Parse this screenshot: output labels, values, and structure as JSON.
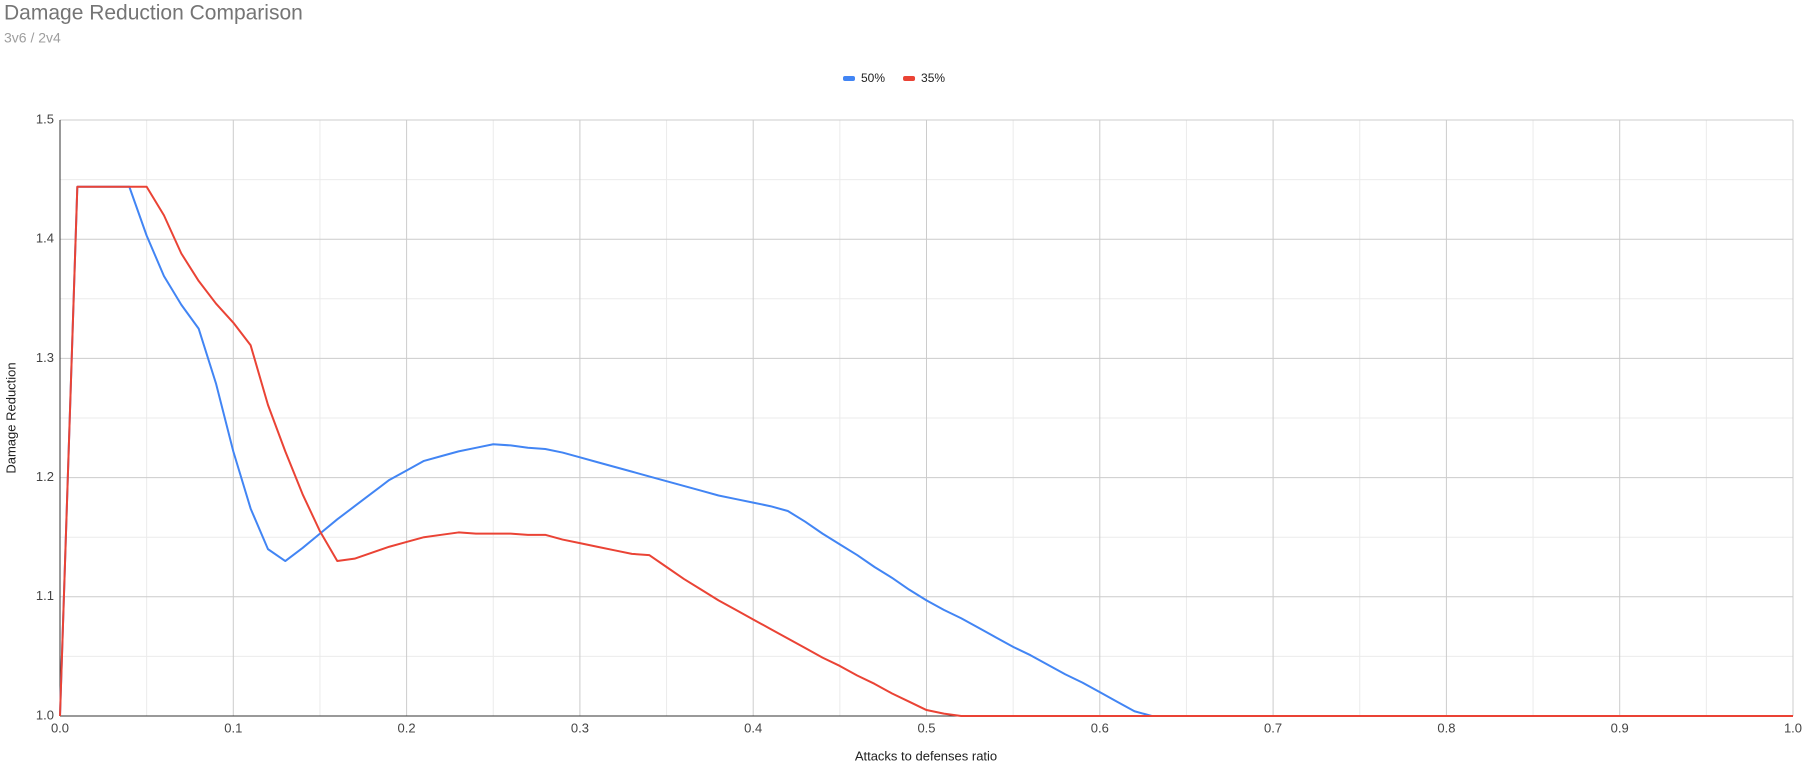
{
  "chart_data": {
    "type": "line",
    "title": "Damage Reduction Comparison",
    "subtitle": "3v6 / 2v4",
    "x_label": "Attacks to defenses ratio",
    "y_label": "Damage Reduction",
    "x": [
      0,
      0.01,
      0.02,
      0.03,
      0.04,
      0.05,
      0.06,
      0.07,
      0.08,
      0.09,
      0.1,
      0.11,
      0.12,
      0.13,
      0.14,
      0.15,
      0.16,
      0.17,
      0.18,
      0.19,
      0.2,
      0.21,
      0.22,
      0.23,
      0.24,
      0.25,
      0.26,
      0.27,
      0.28,
      0.29,
      0.3,
      0.31,
      0.32,
      0.33,
      0.34,
      0.35,
      0.36,
      0.37,
      0.38,
      0.39,
      0.4,
      0.41,
      0.42,
      0.43,
      0.44,
      0.45,
      0.46,
      0.47,
      0.48,
      0.49,
      0.5,
      0.51,
      0.52,
      0.53,
      0.54,
      0.55,
      0.56,
      0.57,
      0.58,
      0.59,
      0.6,
      0.61,
      0.62,
      0.63,
      0.64,
      0.65,
      0.66,
      0.67,
      0.68,
      0.69,
      0.7,
      0.71,
      0.72,
      0.73,
      0.74,
      0.75,
      0.76,
      0.77,
      0.78,
      0.79,
      0.8,
      0.81,
      0.82,
      0.83,
      0.84,
      0.85,
      0.86,
      0.87,
      0.88,
      0.89,
      0.9,
      0.91,
      0.92,
      0.93,
      0.94,
      0.95,
      0.96,
      0.97,
      0.98,
      0.99,
      1
    ],
    "series": [
      {
        "name": "50%",
        "color": "#4285f4",
        "values": [
          1,
          1.444,
          1.444,
          1.444,
          1.444,
          1.403,
          1.369,
          1.345,
          1.325,
          1.279,
          1.222,
          1.174,
          1.14,
          1.13,
          1.141,
          1.153,
          1.165,
          1.176,
          1.187,
          1.198,
          1.206,
          1.214,
          1.218,
          1.222,
          1.225,
          1.228,
          1.227,
          1.225,
          1.224,
          1.221,
          1.217,
          1.213,
          1.209,
          1.205,
          1.201,
          1.197,
          1.193,
          1.189,
          1.185,
          1.182,
          1.179,
          1.176,
          1.172,
          1.163,
          1.153,
          1.144,
          1.135,
          1.125,
          1.116,
          1.106,
          1.097,
          1.089,
          1.082,
          1.074,
          1.066,
          1.058,
          1.051,
          1.043,
          1.035,
          1.028,
          1.02,
          1.012,
          1.004,
          1,
          1,
          1,
          1,
          1,
          1,
          1,
          1,
          1,
          1,
          1,
          1,
          1,
          1,
          1,
          1,
          1,
          1,
          1,
          1,
          1,
          1,
          1,
          1,
          1,
          1,
          1,
          1,
          1,
          1,
          1,
          1,
          1,
          1,
          1,
          1,
          1,
          1
        ]
      },
      {
        "name": "35%",
        "color": "#ea4335",
        "values": [
          1,
          1.444,
          1.444,
          1.444,
          1.444,
          1.444,
          1.42,
          1.388,
          1.365,
          1.346,
          1.33,
          1.311,
          1.261,
          1.222,
          1.186,
          1.155,
          1.13,
          1.132,
          1.137,
          1.142,
          1.146,
          1.15,
          1.152,
          1.154,
          1.153,
          1.153,
          1.153,
          1.152,
          1.152,
          1.148,
          1.145,
          1.142,
          1.139,
          1.136,
          1.135,
          1.125,
          1.115,
          1.106,
          1.097,
          1.089,
          1.081,
          1.073,
          1.065,
          1.057,
          1.049,
          1.042,
          1.034,
          1.027,
          1.019,
          1.012,
          1.005,
          1.002,
          1,
          1,
          1,
          1,
          1,
          1,
          1,
          1,
          1,
          1,
          1,
          1,
          1,
          1,
          1,
          1,
          1,
          1,
          1,
          1,
          1,
          1,
          1,
          1,
          1,
          1,
          1,
          1,
          1,
          1,
          1,
          1,
          1,
          1,
          1,
          1,
          1,
          1,
          1,
          1,
          1,
          1,
          1,
          1,
          1,
          1,
          1,
          1,
          1
        ]
      }
    ],
    "xlim": [
      0,
      1
    ],
    "xticks": [
      {
        "value": 0,
        "label": "0.0"
      },
      0.1,
      0.2,
      0.3,
      0.4,
      0.5,
      0.6,
      0.7,
      0.8,
      0.9,
      {
        "value": 1,
        "label": "1.0"
      }
    ],
    "ylim": [
      1,
      1.5
    ],
    "yticks": [
      {
        "value": 1,
        "label": "1.0"
      },
      1.1,
      1.2,
      1.3,
      1.4,
      1.5
    ],
    "grid": true,
    "legend": "top"
  }
}
